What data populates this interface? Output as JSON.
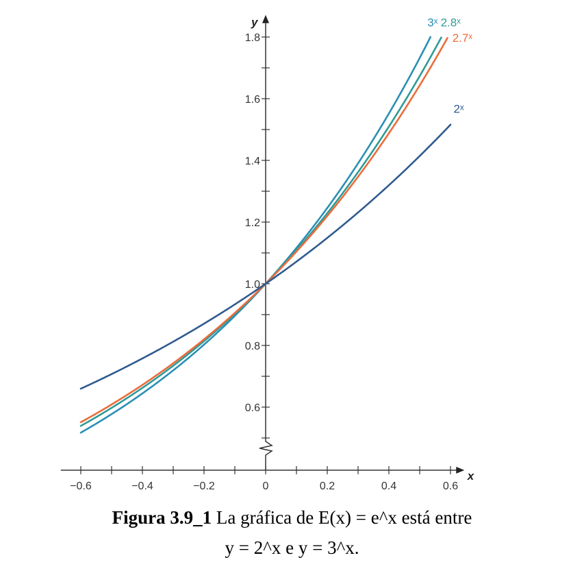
{
  "chart_data": {
    "type": "line",
    "title": "",
    "xlabel": "x",
    "ylabel": "y",
    "xlim": [
      -0.6,
      0.6
    ],
    "ylim": [
      0.5,
      1.8
    ],
    "x_ticks": [
      "−0.6",
      "−0.4",
      "−0.2",
      "0",
      "0.2",
      "0.4",
      "0.6"
    ],
    "y_ticks": [
      "0.6",
      "0.8",
      "1.0",
      "1.2",
      "1.4",
      "1.6",
      "1.8"
    ],
    "y_axis_break": true,
    "x_range": [
      -0.6,
      0.6
    ],
    "series": [
      {
        "name": "3ˣ",
        "base": 3,
        "color": "#2a8fb4",
        "x": [
          -0.6,
          -0.4,
          -0.2,
          0,
          0.2,
          0.4,
          0.535
        ],
        "values": [
          0.517,
          0.644,
          0.803,
          1.0,
          1.246,
          1.552,
          1.8
        ]
      },
      {
        "name": "2.8ˣ",
        "base": 2.8,
        "color": "#2e9b96",
        "x": [
          -0.6,
          -0.4,
          -0.2,
          0,
          0.2,
          0.4,
          0.571
        ],
        "values": [
          0.539,
          0.662,
          0.814,
          1.0,
          1.229,
          1.509,
          1.8
        ]
      },
      {
        "name": "2.7ˣ",
        "base": 2.7,
        "color": "#ec6c3c",
        "x": [
          -0.6,
          -0.4,
          -0.2,
          0,
          0.2,
          0.4,
          0.592
        ],
        "values": [
          0.551,
          0.672,
          0.82,
          1.0,
          1.22,
          1.488,
          1.8
        ]
      },
      {
        "name": "2ˣ",
        "base": 2,
        "color": "#2f5a8f",
        "x": [
          -0.6,
          -0.4,
          -0.2,
          0,
          0.2,
          0.4,
          0.6
        ],
        "values": [
          0.66,
          0.758,
          0.871,
          1.0,
          1.149,
          1.32,
          1.516
        ]
      }
    ]
  },
  "caption": {
    "bold": "Figura 3.9_1",
    "line1_rest": " La gráfica de E(x) = e^x está entre",
    "line2": "y = 2^x e y = 3^x."
  }
}
